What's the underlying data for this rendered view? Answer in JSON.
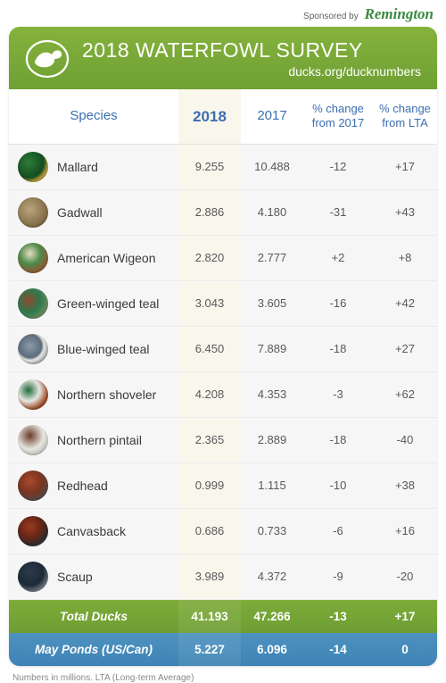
{
  "sponsor": {
    "prefix": "Sponsored by",
    "brand": "Remington"
  },
  "header": {
    "title": "2018 WATERFOWL SURVEY",
    "subtitle": "ducks.org/ducknumbers"
  },
  "columns": {
    "species": "Species",
    "y2018": "2018",
    "y2017": "2017",
    "pct17": "% change from 2017",
    "lta": "% change from LTA"
  },
  "rows": [
    {
      "name": "Mallard",
      "y2018": "9.255",
      "y2017": "10.488",
      "pct17": "-12",
      "lta": "+17",
      "avatar": "radial-gradient(circle at 35% 35%, #2d7a3a 0%, #134d1f 55%, #b89a3a 70%, #8a6a20 100%)"
    },
    {
      "name": "Gadwall",
      "y2018": "2.886",
      "y2017": "4.180",
      "pct17": "-31",
      "lta": "+43",
      "avatar": "radial-gradient(circle at 40% 40%, #b9a57e 0%, #8f7a54 50%, #5c4a30 100%)"
    },
    {
      "name": "American Wigeon",
      "y2018": "2.820",
      "y2017": "2.777",
      "pct17": "+2",
      "lta": "+8",
      "avatar": "radial-gradient(circle at 40% 35%, #e7dfc0 0%, #4c8a4a 40%, #8a5a36 70%, #5b3c22 100%)"
    },
    {
      "name": "Green-winged teal",
      "y2018": "3.043",
      "y2017": "3.605",
      "pct17": "-16",
      "lta": "+42",
      "avatar": "radial-gradient(circle at 35% 40%, #8c4a32 0%, #2c7a4d 45%, #7a8a60 80%, #4c5c3a 100%)"
    },
    {
      "name": "Blue-winged teal",
      "y2018": "6.450",
      "y2017": "7.889",
      "pct17": "-18",
      "lta": "+27",
      "avatar": "radial-gradient(circle at 40% 40%, #8a9aa8 0%, #5c6c7a 45%, #e6e6e0 55%, #3a4450 100%)"
    },
    {
      "name": "Northern shoveler",
      "y2018": "4.208",
      "y2017": "4.353",
      "pct17": "-3",
      "lta": "+62",
      "avatar": "radial-gradient(circle at 35% 35%, #1f6a3a 0%, #e6e6e0 40%, #9a4a28 70%, #5a2c16 100%)"
    },
    {
      "name": "Northern pintail",
      "y2018": "2.365",
      "y2017": "2.889",
      "pct17": "-18",
      "lta": "-40",
      "avatar": "radial-gradient(circle at 40% 35%, #6a3a28 0%, #e6e6e0 50%, #b8b8b0 80%, #888880 100%)"
    },
    {
      "name": "Redhead",
      "y2018": "0.999",
      "y2017": "1.115",
      "pct17": "-10",
      "lta": "+38",
      "avatar": "radial-gradient(circle at 40% 35%, #a84a2c 0%, #7a3420 45%, #4a4a4a 75%, #2c2c2c 100%)"
    },
    {
      "name": "Canvasback",
      "y2018": "0.686",
      "y2017": "0.733",
      "pct17": "-6",
      "lta": "+16",
      "avatar": "radial-gradient(circle at 40% 35%, #9a3a22 0%, #6a2616 40%, #2a2a2a 70%, #e0e0da 100%)"
    },
    {
      "name": "Scaup",
      "y2018": "3.989",
      "y2017": "4.372",
      "pct17": "-9",
      "lta": "-20",
      "avatar": "radial-gradient(circle at 40% 35%, #2c3a4a 0%, #1c2a38 50%, #8a9098 80%, #5c646c 100%)"
    }
  ],
  "totals": {
    "ducks": {
      "label": "Total Ducks",
      "y2018": "41.193",
      "y2017": "47.266",
      "pct17": "-13",
      "lta": "+17"
    },
    "mayponds": {
      "label": "May Ponds (US/Can)",
      "y2018": "5.227",
      "y2017": "6.096",
      "pct17": "-14",
      "lta": "0"
    }
  },
  "footnote": "Numbers in millions. LTA (Long-term Average)",
  "style": {
    "header_gradient": [
      "#86b23d",
      "#6ea033"
    ],
    "total_green_gradient": [
      "#7eac39",
      "#6e9d33"
    ],
    "total_blue_gradient": [
      "#4d92c0",
      "#3e83b4"
    ],
    "highlight_col_bg": "#f9f6ec",
    "card_bg": "#f6f6f6",
    "th_color": "#3b6fb0",
    "row_text_color": "#595959",
    "border_color": "#eaeaea"
  }
}
